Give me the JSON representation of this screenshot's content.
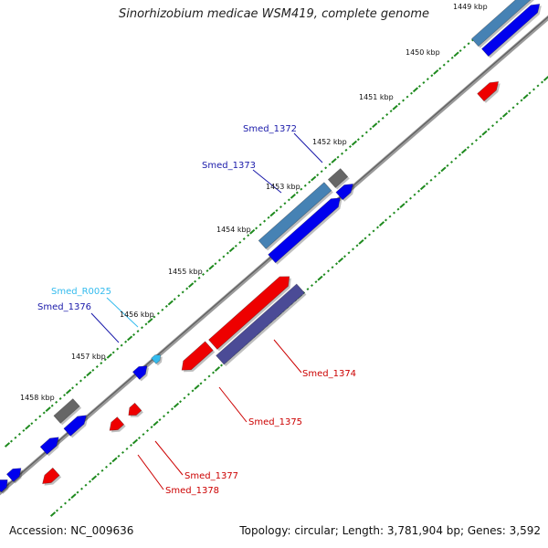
{
  "title": "Sinorhizobium medicae WSM419, complete genome",
  "footer": {
    "accession": "Accession: NC_009636",
    "summary": "Topology: circular; Length: 3,781,904 bp; Genes: 3,592"
  },
  "colors": {
    "backbone": "#808080",
    "tick": "#1e8a1e",
    "gene_blue": "#0000ee",
    "gene_red": "#ee0000",
    "gene_gray": "#666666",
    "gene_steel": "#4682b4",
    "gene_slate": "#4b4b96",
    "gene_cyan": "#33bbee",
    "label_blue": "#1a1aaa",
    "label_red": "#cc0000",
    "label_cyan": "#33bbee"
  },
  "scale_labels": [
    "1449 kbp",
    "1450 kbp",
    "1451 kbp",
    "1452 kbp",
    "1453 kbp",
    "1454 kbp",
    "1455 kbp",
    "1456 kbp",
    "1457 kbp",
    "1458 kbp"
  ],
  "gene_labels": [
    "Smed_1372",
    "Smed_1373",
    "Smed_R0025",
    "Smed_1376",
    "Smed_1374",
    "Smed_1375",
    "Smed_1377",
    "Smed_1378"
  ]
}
